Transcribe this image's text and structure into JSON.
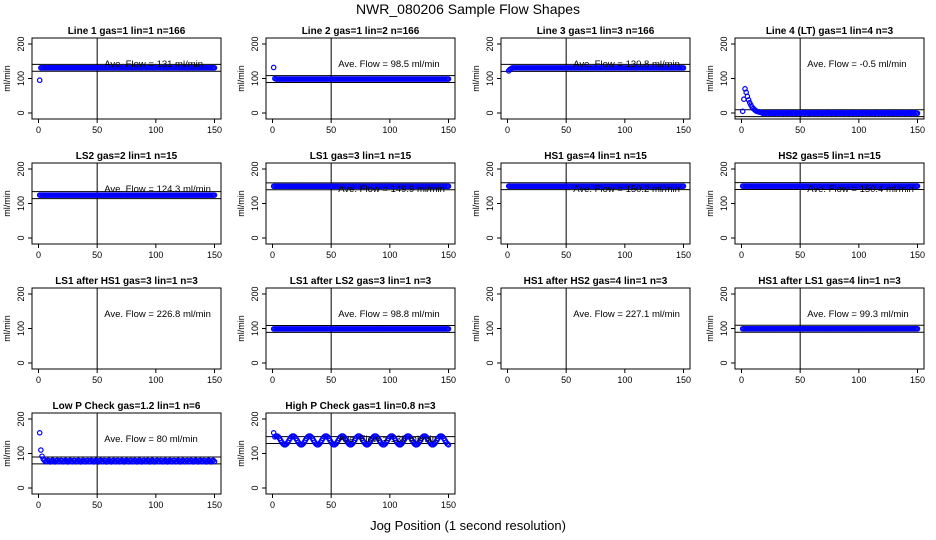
{
  "figure": {
    "title": "NWR_080206  Sample Flow Shapes",
    "xlabel": "Jog Position (1 second resolution)"
  },
  "style": {
    "point_color": "#0000ff",
    "line_color": "#000000"
  },
  "chart_data": [
    {
      "type": "scatter",
      "title": "Line 1 gas=1 lin=1 n=166",
      "annotation": "Ave. Flow =  131  ml/min",
      "ylabel": "ml/min",
      "xlim": [
        0,
        150
      ],
      "ylim": [
        0,
        200
      ],
      "xticks": [
        0,
        50,
        100,
        150
      ],
      "yticks": [
        0,
        100,
        200
      ],
      "vline": 50,
      "hlines": [
        121,
        141
      ],
      "shape": {
        "mode": "flat",
        "base": 131,
        "start": [
          95
        ]
      }
    },
    {
      "type": "scatter",
      "title": "Line 2 gas=1 lin=2 n=166",
      "annotation": "Ave. Flow =  98.5  ml/min",
      "ylabel": "ml/min",
      "xlim": [
        0,
        150
      ],
      "ylim": [
        0,
        200
      ],
      "xticks": [
        0,
        50,
        100,
        150
      ],
      "yticks": [
        0,
        100,
        200
      ],
      "vline": 50,
      "hlines": [
        88.5,
        108.5
      ],
      "shape": {
        "mode": "flat",
        "base": 98.5,
        "start": [
          132,
          100
        ]
      }
    },
    {
      "type": "scatter",
      "title": "Line 3 gas=1 lin=3 n=166",
      "annotation": "Ave. Flow =  130.8  ml/min",
      "ylabel": "ml/min",
      "xlim": [
        0,
        150
      ],
      "ylim": [
        0,
        200
      ],
      "xticks": [
        0,
        50,
        100,
        150
      ],
      "yticks": [
        0,
        100,
        200
      ],
      "vline": 50,
      "hlines": [
        120.8,
        140.8
      ],
      "shape": {
        "mode": "flat",
        "base": 130.8,
        "start": [
          122,
          126,
          128
        ]
      }
    },
    {
      "type": "scatter",
      "title": "Line 4 (LT) gas=1 lin=4 n=3",
      "annotation": "Ave. Flow =  -0.5  ml/min",
      "ylabel": "ml/min",
      "xlim": [
        0,
        150
      ],
      "ylim": [
        0,
        200
      ],
      "xticks": [
        0,
        50,
        100,
        150
      ],
      "yticks": [
        0,
        100,
        200
      ],
      "vline": 50,
      "hlines": [
        -10.5,
        9.5
      ],
      "shape": {
        "mode": "decay",
        "base": 0,
        "start": [
          5,
          40,
          70,
          60,
          48,
          38,
          30,
          23,
          17,
          13,
          10,
          7,
          5,
          4,
          3,
          2
        ]
      }
    },
    {
      "type": "scatter",
      "title": "LS2 gas=2 lin=1 n=15",
      "annotation": "Ave. Flow =  124.3  ml/min",
      "ylabel": "ml/min",
      "xlim": [
        0,
        150
      ],
      "ylim": [
        0,
        200
      ],
      "xticks": [
        0,
        50,
        100,
        150
      ],
      "yticks": [
        0,
        100,
        200
      ],
      "vline": 50,
      "hlines": [
        114.3,
        134.3
      ],
      "shape": {
        "mode": "flat",
        "base": 124.3,
        "start": []
      }
    },
    {
      "type": "scatter",
      "title": "LS1 gas=3 lin=1 n=15",
      "annotation": "Ave. Flow =  149.9  ml/min",
      "ylabel": "ml/min",
      "xlim": [
        0,
        150
      ],
      "ylim": [
        0,
        200
      ],
      "xticks": [
        0,
        50,
        100,
        150
      ],
      "yticks": [
        0,
        100,
        200
      ],
      "vline": 50,
      "hlines": [
        139.9,
        159.9
      ],
      "shape": {
        "mode": "flat",
        "base": 149.9,
        "start": []
      }
    },
    {
      "type": "scatter",
      "title": "HS1 gas=4 lin=1 n=15",
      "annotation": "Ave. Flow =  150.2  ml/min",
      "ylabel": "ml/min",
      "xlim": [
        0,
        150
      ],
      "ylim": [
        0,
        200
      ],
      "xticks": [
        0,
        50,
        100,
        150
      ],
      "yticks": [
        0,
        100,
        200
      ],
      "vline": 50,
      "hlines": [
        140.2,
        160.2
      ],
      "shape": {
        "mode": "flat",
        "base": 150.2,
        "start": []
      }
    },
    {
      "type": "scatter",
      "title": "HS2 gas=5 lin=1 n=15",
      "annotation": "Ave. Flow =  150.4  ml/min",
      "ylabel": "ml/min",
      "xlim": [
        0,
        150
      ],
      "ylim": [
        0,
        200
      ],
      "xticks": [
        0,
        50,
        100,
        150
      ],
      "yticks": [
        0,
        100,
        200
      ],
      "vline": 50,
      "hlines": [
        140.4,
        160.4
      ],
      "shape": {
        "mode": "flat",
        "base": 150.4,
        "start": []
      }
    },
    {
      "type": "scatter",
      "title": "LS1 after HS1 gas=3 lin=1 n=3",
      "annotation": "Ave. Flow =  226.8  ml/min",
      "ylabel": "ml/min",
      "xlim": [
        0,
        150
      ],
      "ylim": [
        0,
        200
      ],
      "xticks": [
        0,
        50,
        100,
        150
      ],
      "yticks": [
        0,
        100,
        200
      ],
      "vline": 50,
      "hlines": [],
      "shape": {
        "mode": "none"
      }
    },
    {
      "type": "scatter",
      "title": "LS1 after LS2 gas=3 lin=1 n=3",
      "annotation": "Ave. Flow =  98.8  ml/min",
      "ylabel": "ml/min",
      "xlim": [
        0,
        150
      ],
      "ylim": [
        0,
        200
      ],
      "xticks": [
        0,
        50,
        100,
        150
      ],
      "yticks": [
        0,
        100,
        200
      ],
      "vline": 50,
      "hlines": [
        88.8,
        108.8
      ],
      "shape": {
        "mode": "flat",
        "base": 98.8,
        "start": []
      }
    },
    {
      "type": "scatter",
      "title": "HS1 after HS2 gas=4 lin=1 n=3",
      "annotation": "Ave. Flow =  227.1  ml/min",
      "ylabel": "ml/min",
      "xlim": [
        0,
        150
      ],
      "ylim": [
        0,
        200
      ],
      "xticks": [
        0,
        50,
        100,
        150
      ],
      "yticks": [
        0,
        100,
        200
      ],
      "vline": 50,
      "hlines": [],
      "shape": {
        "mode": "none"
      }
    },
    {
      "type": "scatter",
      "title": "HS1 after LS1 gas=4 lin=1 n=3",
      "annotation": "Ave. Flow =  99.3  ml/min",
      "ylabel": "ml/min",
      "xlim": [
        0,
        150
      ],
      "ylim": [
        0,
        200
      ],
      "xticks": [
        0,
        50,
        100,
        150
      ],
      "yticks": [
        0,
        100,
        200
      ],
      "vline": 50,
      "hlines": [
        89.3,
        109.3
      ],
      "shape": {
        "mode": "flat",
        "base": 99.3,
        "start": []
      }
    },
    {
      "type": "scatter",
      "title": "Low P Check gas=1.2 lin=1 n=6",
      "annotation": "Ave. Flow =  80  ml/min",
      "ylabel": "ml/min",
      "xlim": [
        0,
        150
      ],
      "ylim": [
        0,
        200
      ],
      "xticks": [
        0,
        50,
        100,
        150
      ],
      "yticks": [
        0,
        100,
        200
      ],
      "vline": 50,
      "hlines": [
        70,
        90
      ],
      "shape": {
        "mode": "noisy",
        "base": 78,
        "start": [
          160,
          110,
          92,
          84
        ]
      }
    },
    {
      "type": "scatter",
      "title": "High P Check gas=1 lin=0.8 n=3",
      "annotation": "Ave. Flow =  139  ml/min",
      "ylabel": "ml/min",
      "xlim": [
        0,
        150
      ],
      "ylim": [
        0,
        200
      ],
      "xticks": [
        0,
        50,
        100,
        150
      ],
      "yticks": [
        0,
        100,
        200
      ],
      "vline": 50,
      "hlines": [
        129,
        149
      ],
      "shape": {
        "mode": "wave",
        "base": 138,
        "amp": 13,
        "period": 14,
        "start": [
          160
        ]
      }
    }
  ]
}
